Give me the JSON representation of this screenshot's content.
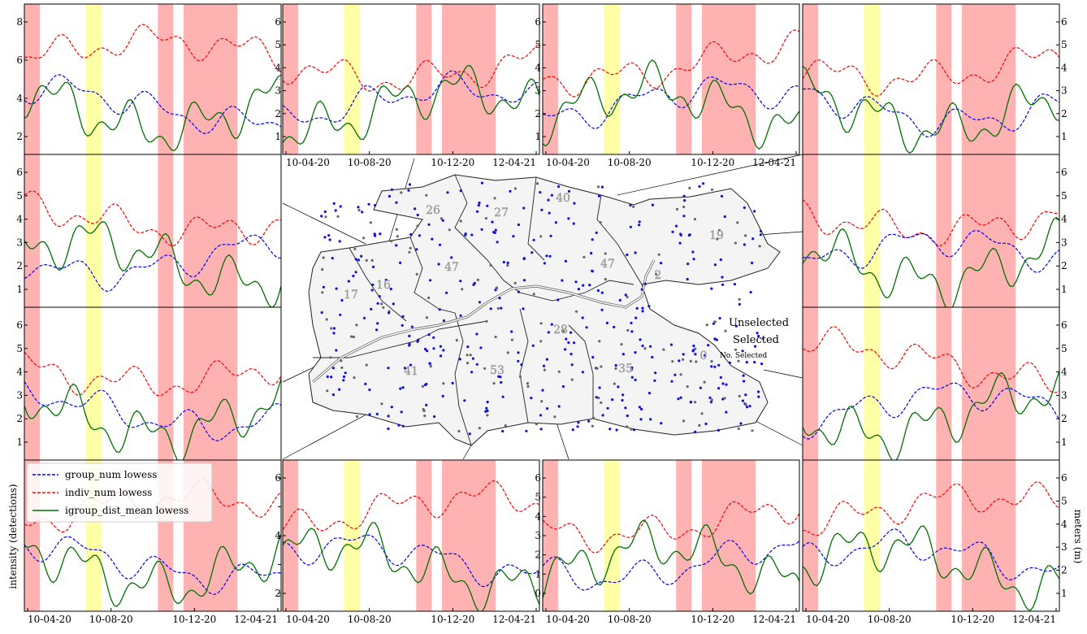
{
  "chart_data": {
    "type": "line",
    "layout": "4x4 panel ring around a central map",
    "x_tick_labels": [
      "10-04-20",
      "10-08-20",
      "10-12-20",
      "12-04-21"
    ],
    "ylabel_left": "intensity (detections)",
    "ylabel_right": "meters (m)",
    "legend": {
      "placement": "upper-left of bottom-left panel",
      "entries": [
        {
          "label": "group_num lowess",
          "color": "#0000ff",
          "style": "dashed"
        },
        {
          "label": "indiv_num lowess",
          "color": "#ff0000",
          "style": "dashed"
        },
        {
          "label": "igroup_dist_mean lowess",
          "color": "#007000",
          "style": "solid"
        }
      ]
    },
    "shaded_periods": {
      "red": [
        [
          0.0,
          0.06
        ],
        [
          0.52,
          0.58
        ],
        [
          0.62,
          0.83
        ]
      ],
      "yellow": [
        [
          0.24,
          0.3
        ]
      ]
    },
    "colors": {
      "group": "#0000ff",
      "indiv": "#ff0000",
      "dist": "#007000",
      "red_band": "#ff7f7f",
      "yellow_band": "#ffff88"
    },
    "map": {
      "legend": {
        "unselected": "Unselected",
        "selected": "Selected",
        "count_symbol": "0",
        "count_label": "No. Selected"
      },
      "region_counts": [
        "26",
        "27",
        "40",
        "47",
        "47",
        "19",
        "17",
        "16",
        "28",
        "41",
        "53",
        "35",
        "2"
      ]
    },
    "panels": [
      {
        "id": "r0c0",
        "y_ticks": [
          "2",
          "4",
          "6",
          "8"
        ],
        "tick_side": "left",
        "show_x": false
      },
      {
        "id": "r0c1",
        "y_ticks": [
          "1",
          "2",
          "3",
          "4",
          "5",
          "6"
        ],
        "tick_side": "left",
        "show_x": true
      },
      {
        "id": "r0c2",
        "y_ticks": [
          "1",
          "2",
          "3",
          "4",
          "5",
          "6"
        ],
        "tick_side": "left",
        "show_x": true
      },
      {
        "id": "r0c3",
        "y_ticks": [
          "1",
          "2",
          "3",
          "4",
          "5",
          "6"
        ],
        "tick_side": "right",
        "show_x": false
      },
      {
        "id": "r1c0",
        "y_ticks": [
          "1",
          "2",
          "3",
          "4",
          "5",
          "6"
        ],
        "tick_side": "left",
        "show_x": false
      },
      {
        "id": "r1c3",
        "y_ticks": [
          "1",
          "2",
          "3",
          "4",
          "5",
          "6"
        ],
        "tick_side": "right",
        "show_x": false
      },
      {
        "id": "r2c0",
        "y_ticks": [
          "1",
          "2",
          "3",
          "4",
          "5",
          "6"
        ],
        "tick_side": "left",
        "show_x": false
      },
      {
        "id": "r2c3",
        "y_ticks": [
          "1",
          "2",
          "3",
          "4",
          "5",
          "6"
        ],
        "tick_side": "right",
        "show_x": false
      },
      {
        "id": "r3c0",
        "y_ticks": [
          "2",
          "3",
          "4",
          "5",
          "6"
        ],
        "tick_side": "right",
        "show_x": true
      },
      {
        "id": "r3c1",
        "y_ticks": [
          "2",
          "4",
          "6"
        ],
        "tick_side": "left",
        "show_x": true
      },
      {
        "id": "r3c2",
        "y_ticks": [
          "0",
          "1",
          "2",
          "3",
          "4",
          "5",
          "6"
        ],
        "tick_side": "left",
        "show_x": true
      },
      {
        "id": "r3c3",
        "y_ticks": [
          "1",
          "2",
          "3",
          "4",
          "5",
          "6"
        ],
        "tick_side": "right",
        "show_x": true
      }
    ]
  }
}
